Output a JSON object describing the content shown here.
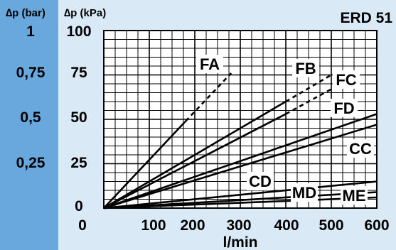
{
  "chart_data": {
    "type": "line",
    "title": "ERD 51",
    "xlabel": "l/min",
    "ylabel_left": "∆p (bar)",
    "ylabel_right": "∆p (kPa)",
    "xlim": [
      0,
      600
    ],
    "ylim": [
      0,
      100
    ],
    "x_ticks": [
      "0",
      "100",
      "200",
      "300",
      "400",
      "500",
      "600"
    ],
    "y_ticks_kpa": [
      "100",
      "75",
      "50",
      "25",
      "0"
    ],
    "y_ticks_bar": [
      "1",
      "0,75",
      "0,5",
      "0,25"
    ],
    "grid": true,
    "colors": {
      "left_band": "#69a8dd",
      "plot_bg": "#d9e9f6",
      "line": "#000000"
    },
    "series": [
      {
        "name": "FA",
        "points": [
          [
            0,
            0
          ],
          [
            180,
            49
          ]
        ],
        "dashed_points": [
          [
            180,
            49
          ],
          [
            280,
            76
          ]
        ]
      },
      {
        "name": "FB",
        "points": [
          [
            0,
            0
          ],
          [
            400,
            60
          ]
        ],
        "dashed_points": [
          [
            400,
            60
          ],
          [
            500,
            75
          ]
        ]
      },
      {
        "name": "FC",
        "points": [
          [
            0,
            0
          ],
          [
            400,
            53
          ]
        ],
        "dashed_points": [
          [
            400,
            53
          ],
          [
            500,
            67
          ]
        ]
      },
      {
        "name": "FD",
        "points": [
          [
            0,
            0
          ],
          [
            600,
            53
          ]
        ]
      },
      {
        "name": "CC",
        "points": [
          [
            0,
            0
          ],
          [
            600,
            47
          ]
        ]
      },
      {
        "name": "CD",
        "points": [
          [
            0,
            0
          ],
          [
            600,
            15
          ]
        ]
      },
      {
        "name": "MD",
        "points": [
          [
            0,
            0
          ],
          [
            600,
            9
          ]
        ]
      },
      {
        "name": "ME",
        "points": [
          [
            0,
            0
          ],
          [
            600,
            6
          ]
        ]
      }
    ]
  }
}
